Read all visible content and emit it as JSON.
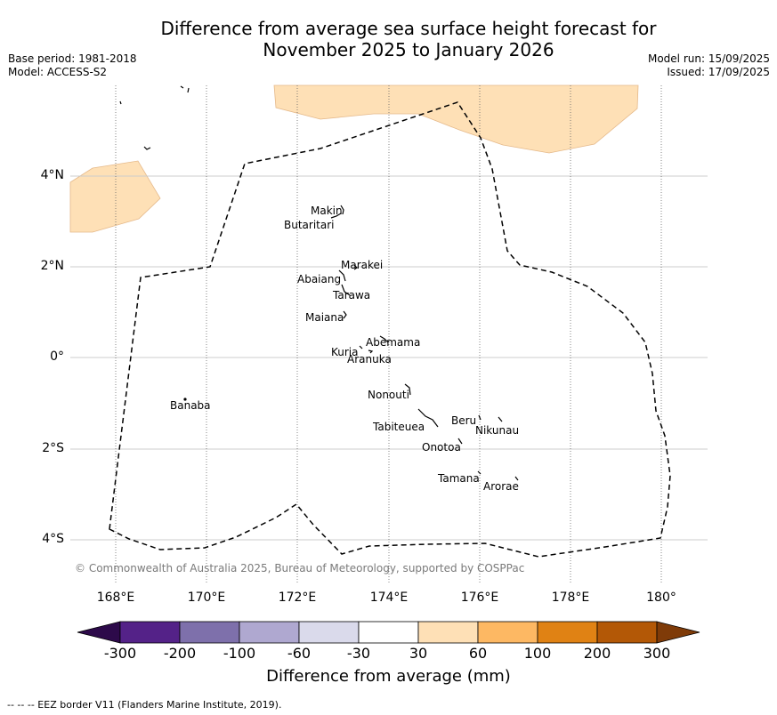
{
  "title_line1": "Difference from average sea surface height forecast for",
  "title_line2": "November 2025 to January 2026",
  "base_period": "Base period: 1981-2018",
  "model": "Model: ACCESS-S2",
  "model_run": "Model run: 15/09/2025",
  "issued": "Issued: 17/09/2025",
  "lat_labels": [
    "4°N",
    "2°N",
    "0°",
    "2°S",
    "4°S"
  ],
  "lon_labels": [
    "168°E",
    "170°E",
    "172°E",
    "174°E",
    "176°E",
    "178°E",
    "180°"
  ],
  "islands": {
    "makin": "Makin",
    "butaritari": "Butaritari",
    "marakei": "Marakei",
    "abaiang": "Abaiang",
    "tarawa": "Tarawa",
    "maiana": "Maiana",
    "abemama": "Abemama",
    "kuria": "Kuria",
    "aranuka": "Aranuka",
    "nonouti": "Nonouti",
    "banaba": "Banaba",
    "beru": "Beru",
    "nikunau": "Nikunau",
    "tabiteuea": "Tabiteuea",
    "onotoa": "Onotoa",
    "tamana": "Tamana",
    "arorae": "Arorae"
  },
  "copyright": "© Commonwealth of Australia 2025, Bureau of Meteorology, supported by COSPPac",
  "colorbar": {
    "ticks": [
      "-300",
      "-200",
      "-100",
      "-60",
      "-30",
      "30",
      "60",
      "100",
      "200",
      "300"
    ],
    "colors": [
      "#2d0a4a",
      "#542288",
      "#7e70ab",
      "#afa8d0",
      "#dadaeb",
      "#ffffff",
      "#fee0b6",
      "#fdb863",
      "#e08214",
      "#b35806",
      "#7f3b08"
    ],
    "label": "Difference from average (mm)"
  },
  "footer": "--  --  -- EEZ border V11 (Flanders Marine Institute, 2019).",
  "colors": {
    "anomaly_30_60": "#fee0b6",
    "gridline": "#cccccc",
    "eez": "#000000"
  }
}
